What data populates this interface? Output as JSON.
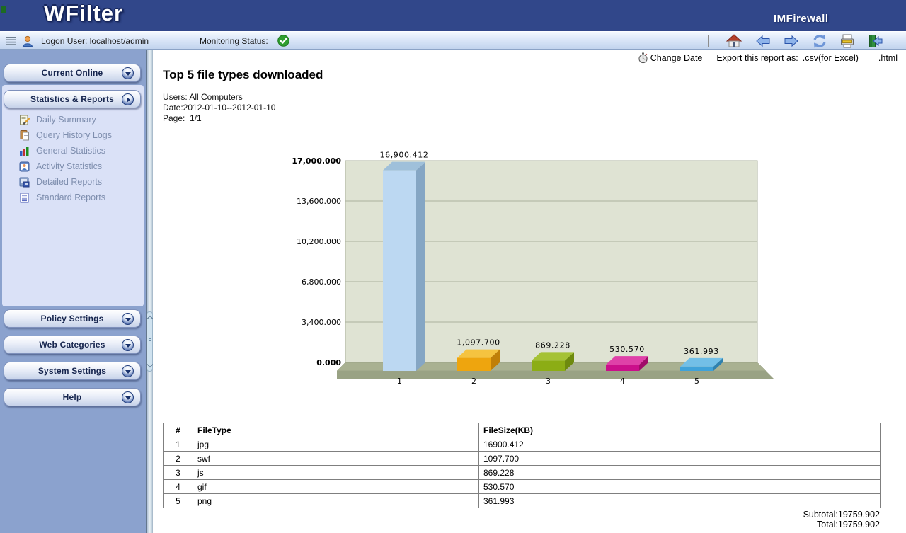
{
  "header": {
    "logo": "WFilter",
    "brand": "IMFirewall"
  },
  "statusbar": {
    "logon_label": "Logon User: localhost/admin",
    "monitoring_label": "Monitoring Status:",
    "monitoring_state_icon": "green-check-icon"
  },
  "toolbar": {
    "icons": [
      "home-icon",
      "back-icon",
      "forward-icon",
      "refresh-icon",
      "print-icon",
      "logout-icon"
    ]
  },
  "sidebar": {
    "sections": [
      {
        "label": "Current Online",
        "arrow": "down",
        "expanded": false
      },
      {
        "label": "Statistics & Reports",
        "arrow": "right",
        "expanded": true,
        "items": [
          {
            "label": "Daily Summary",
            "icon": "daily-summary-icon"
          },
          {
            "label": "Query History Logs",
            "icon": "query-history-icon"
          },
          {
            "label": "General Statistics",
            "icon": "general-statistics-icon"
          },
          {
            "label": "Activity Statistics",
            "icon": "activity-statistics-icon"
          },
          {
            "label": "Detailed Reports",
            "icon": "detailed-reports-icon"
          },
          {
            "label": "Standard Reports",
            "icon": "standard-reports-icon"
          }
        ]
      },
      {
        "label": "Policy Settings",
        "arrow": "down",
        "expanded": false
      },
      {
        "label": "Web Categories",
        "arrow": "down",
        "expanded": false
      },
      {
        "label": "System Settings",
        "arrow": "down",
        "expanded": false
      },
      {
        "label": "Help",
        "arrow": "down",
        "expanded": false
      }
    ]
  },
  "report": {
    "change_date_label": "Change Date",
    "export_label": "Export this report as:",
    "export_csv_label": ".csv(for Excel)",
    "export_html_label": ".html",
    "title": "Top 5 file types downloaded",
    "users_line": "Users: All Computers",
    "date_line": "Date:2012-01-10--2012-01-10",
    "page_line": "Page:  1/1",
    "subtotal": "Subtotal:19759.902",
    "total": "Total:19759.902"
  },
  "chart_data": {
    "type": "bar",
    "projection": "3d",
    "title": "Top 5 file types downloaded",
    "categories": [
      "1",
      "2",
      "3",
      "4",
      "5"
    ],
    "values": [
      16900.412,
      1097.7,
      869.228,
      530.57,
      361.993
    ],
    "value_labels": [
      "16,900.412",
      "1,097.700",
      "869.228",
      "530.570",
      "361.993"
    ],
    "ylim": [
      0,
      17000
    ],
    "y_ticks": [
      0,
      3400,
      6800,
      10200,
      13600,
      17000
    ],
    "y_tick_labels": [
      "0.000",
      "3,400.000",
      "6,800.000",
      "10,200.000",
      "13,600.000",
      "17,000.000"
    ],
    "grid": true,
    "legend": false,
    "xlabel": "",
    "ylabel": "",
    "colors": {
      "plot_bg": "#dfe3d3",
      "grid": "#abb29c",
      "floor_top": "#a9b191",
      "floor_front": "#99a284",
      "bars": [
        {
          "front": "#bcd8f2",
          "top": "#9fc0da",
          "side": "#85a6c4"
        },
        {
          "front": "#eea50e",
          "top": "#f5c340",
          "side": "#c07f08"
        },
        {
          "front": "#8cad15",
          "top": "#a5c235",
          "side": "#6e8a0e"
        },
        {
          "front": "#cb0f8b",
          "top": "#df41a8",
          "side": "#a00c69"
        },
        {
          "front": "#3fa2d9",
          "top": "#72bfe7",
          "side": "#2f81ae"
        }
      ]
    }
  },
  "table": {
    "columns": [
      "#",
      "FileType",
      "FileSize(KB)"
    ],
    "rows": [
      [
        "1",
        "jpg",
        "16900.412"
      ],
      [
        "2",
        "swf",
        "1097.700"
      ],
      [
        "3",
        "js",
        "869.228"
      ],
      [
        "4",
        "gif",
        "530.570"
      ],
      [
        "5",
        "png",
        "361.993"
      ]
    ]
  }
}
